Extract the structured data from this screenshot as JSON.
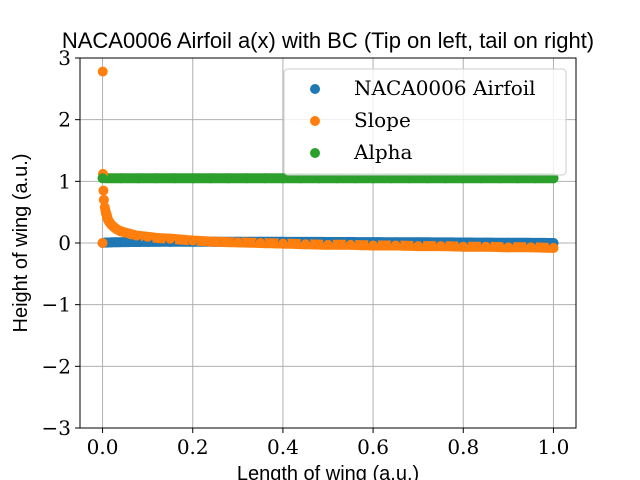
{
  "chart_data": {
    "type": "scatter",
    "title": "NACA0006 Airfoil a(x) with BC (Tip on left, tail on right)",
    "xlabel": "Length of wing (a.u.)",
    "ylabel": "Height of wing (a.u.)",
    "xlim": [
      -0.05,
      1.05
    ],
    "ylim": [
      -3,
      3
    ],
    "xticks": [
      0.0,
      0.2,
      0.4,
      0.6,
      0.8,
      1.0
    ],
    "xtick_labels": [
      "0.0",
      "0.2",
      "0.4",
      "0.6",
      "0.8",
      "1.0"
    ],
    "yticks": [
      -3,
      -2,
      -1,
      0,
      1,
      2,
      3
    ],
    "ytick_labels": [
      "−3",
      "−2",
      "−1",
      "0",
      "1",
      "2",
      "3"
    ],
    "grid": true,
    "legend_position": "top-right",
    "series": [
      {
        "name": "NACA0006 Airfoil",
        "color": "#1f77b4",
        "x": [
          0.0,
          0.005,
          0.01,
          0.02,
          0.03,
          0.05,
          0.075,
          0.1,
          0.15,
          0.2,
          0.25,
          0.3,
          0.35,
          0.4,
          0.45,
          0.5,
          0.55,
          0.6,
          0.65,
          0.7,
          0.75,
          0.8,
          0.85,
          0.9,
          0.95,
          1.0
        ],
        "y": [
          0.0,
          0.0055,
          0.0079,
          0.0107,
          0.0125,
          0.0148,
          0.0167,
          0.0178,
          0.0192,
          0.0198,
          0.02,
          0.0198,
          0.0194,
          0.0187,
          0.0178,
          0.0168,
          0.0157,
          0.0144,
          0.013,
          0.0115,
          0.0099,
          0.0081,
          0.0063,
          0.0043,
          0.0022,
          0.0
        ]
      },
      {
        "name": "Slope",
        "color": "#ff7f0e",
        "x": [
          0.0,
          0.0005,
          0.001,
          0.002,
          0.003,
          0.005,
          0.0075,
          0.01,
          0.0125,
          0.015,
          0.02,
          0.025,
          0.03,
          0.04,
          0.05,
          0.06,
          0.075,
          0.1,
          0.125,
          0.15,
          0.2,
          0.25,
          0.3,
          0.35,
          0.4,
          0.45,
          0.5,
          0.55,
          0.6,
          0.65,
          0.7,
          0.75,
          0.8,
          0.85,
          0.9,
          0.95,
          1.0
        ],
        "y": [
          0.0,
          2.78,
          1.12,
          0.85,
          0.7,
          0.58,
          0.48,
          0.41,
          0.37,
          0.34,
          0.29,
          0.26,
          0.23,
          0.19,
          0.17,
          0.15,
          0.12,
          0.1,
          0.08,
          0.07,
          0.04,
          0.02,
          0.01,
          0.0,
          -0.01,
          -0.02,
          -0.03,
          -0.03,
          -0.04,
          -0.04,
          -0.05,
          -0.05,
          -0.06,
          -0.06,
          -0.07,
          -0.07,
          -0.08
        ]
      },
      {
        "name": "Alpha",
        "color": "#2ca02c",
        "x": [
          0.0,
          0.04,
          0.08,
          0.12,
          0.16,
          0.2,
          0.24,
          0.28,
          0.32,
          0.36,
          0.4,
          0.44,
          0.48,
          0.52,
          0.56,
          0.6,
          0.64,
          0.68,
          0.72,
          0.76,
          0.8,
          0.84,
          0.88,
          0.92,
          0.96,
          1.0
        ],
        "y": [
          1.05,
          1.05,
          1.05,
          1.05,
          1.05,
          1.05,
          1.05,
          1.05,
          1.05,
          1.05,
          1.05,
          1.05,
          1.05,
          1.05,
          1.05,
          1.05,
          1.05,
          1.05,
          1.05,
          1.05,
          1.05,
          1.05,
          1.05,
          1.05,
          1.05,
          1.05
        ]
      }
    ]
  }
}
